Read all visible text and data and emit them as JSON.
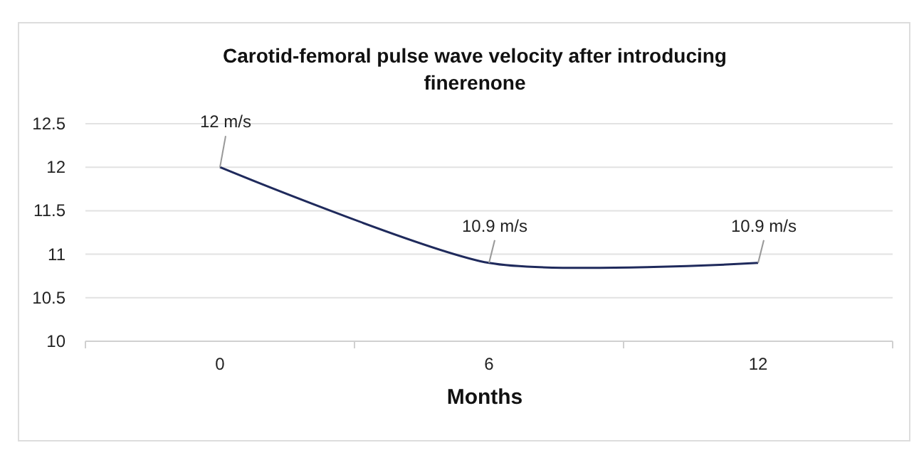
{
  "chart_data": {
    "type": "line",
    "title": "Carotid-femoral pulse wave velocity after introducing finerenone",
    "xlabel": "Months",
    "categories": [
      "0",
      "6",
      "12"
    ],
    "series": [
      {
        "color": "#1f2a5c",
        "values": [
          12,
          10.9,
          10.9
        ],
        "value_labels": [
          "12 m/s",
          "10.9 m/s",
          "10.9 m/s"
        ]
      }
    ],
    "ylim": [
      10,
      12.5
    ],
    "yticks": [
      10,
      10.5,
      11,
      11.5,
      12,
      12.5
    ],
    "grid": "y",
    "marker": "none",
    "line_style": "solid"
  }
}
